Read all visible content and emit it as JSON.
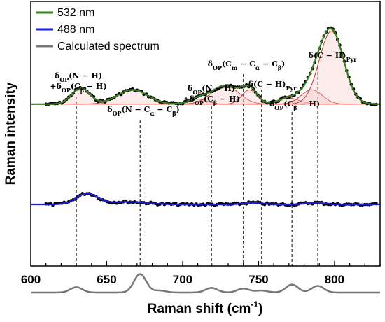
{
  "chart_data": {
    "type": "line",
    "xlabel": "Raman shift (cm",
    "xlabel_sup": "-1",
    "xlabel_end": ")",
    "ylabel": "Raman intensity",
    "xlim": [
      600,
      830
    ],
    "x_ticks": [
      "600",
      "650",
      "700",
      "750",
      "800"
    ],
    "grid": false,
    "legend_position": "top-left",
    "legend": [
      {
        "label": "532 nm",
        "color": "#3a7d1e"
      },
      {
        "label": "488 nm",
        "color": "#1d1dd6"
      },
      {
        "label": "Calculated spectrum",
        "color": "#777777"
      }
    ],
    "reference_lines_x": [
      630,
      672,
      719,
      740,
      752,
      772,
      789
    ],
    "annotations": [
      {
        "lines": [
          [
            "δ",
            "OP",
            "(N − H)"
          ],
          [
            "+δ",
            "OP",
            "(C",
            "β",
            " − H)"
          ]
        ]
      },
      {
        "lines": [
          [
            "δ",
            "OP",
            "(N − C",
            "α",
            " − C",
            "β",
            ")"
          ]
        ]
      },
      {
        "lines": [
          [
            "δ",
            "OP",
            "(N − H)"
          ],
          [
            "+δ",
            "OP",
            "(C",
            "β",
            " − H)"
          ]
        ]
      },
      {
        "lines": [
          [
            "δ",
            "OP",
            "(C",
            "m",
            " − C",
            "α",
            " − C",
            "β",
            ")"
          ]
        ]
      },
      {
        "lines": [
          [
            "δ(C − H)",
            "Pyr",
            ""
          ]
        ]
      },
      {
        "lines": [
          [
            "δ",
            "OP",
            "(C",
            "β",
            " − H)"
          ]
        ]
      },
      {
        "lines": [
          [
            "δ(C − H)",
            "Pyr",
            ""
          ]
        ]
      }
    ],
    "series": [
      {
        "name": "532 nm",
        "color": "#3a7d1e",
        "baseline": 0.46,
        "peaks": [
          [
            633,
            0.19,
            6
          ],
          [
            667,
            0.17,
            10
          ],
          [
            710,
            0.06,
            6
          ],
          [
            728,
            0.22,
            9
          ],
          [
            744,
            0.17,
            5
          ],
          [
            770,
            0.07,
            7
          ],
          [
            785,
            0.17,
            7
          ],
          [
            798,
            0.87,
            8
          ]
        ]
      },
      {
        "name": "488 nm",
        "color": "#1d1dd6",
        "baseline": 0.0,
        "peaks": [
          [
            637,
            0.13,
            7
          ],
          [
            664,
            0.03,
            12
          ],
          [
            746,
            0.02,
            6
          ],
          [
            787,
            0.02,
            6
          ]
        ]
      },
      {
        "name": "Calculated spectrum",
        "color": "#777777",
        "baseline": -0.4,
        "peaks": [
          [
            630,
            0.08,
            4
          ],
          [
            672,
            0.28,
            4
          ],
          [
            685,
            0.03,
            4
          ],
          [
            719,
            0.07,
            4
          ],
          [
            740,
            0.06,
            4
          ],
          [
            752,
            0.03,
            4
          ],
          [
            772,
            0.12,
            4
          ],
          [
            789,
            0.1,
            4
          ]
        ]
      }
    ]
  }
}
